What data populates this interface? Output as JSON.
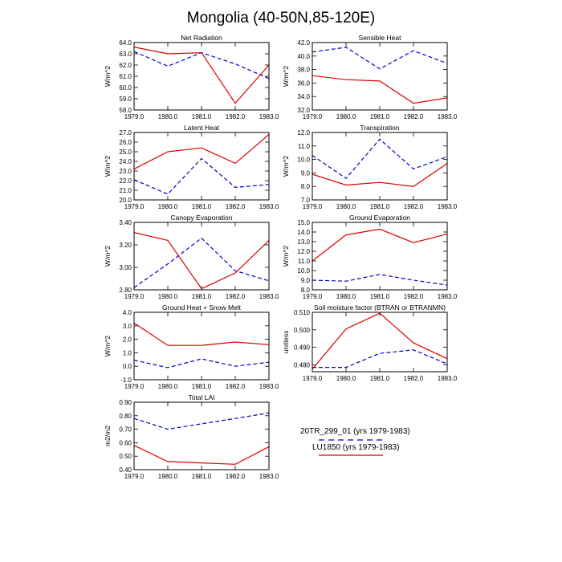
{
  "figure_title": "Mongolia (40-50N,85-120E)",
  "legend": {
    "entries": [
      {
        "label": "20TR_299_01 (yrs 1979-1983)",
        "color": "#0000cc",
        "dash": "dashed"
      },
      {
        "label": "LU1850 (yrs 1979-1983)",
        "color": "#dd0000",
        "dash": "solid"
      }
    ]
  },
  "chart_data": [
    {
      "type": "line",
      "title": "Net Radiation",
      "ylabel": "W/m^2",
      "x": [
        1979,
        1980,
        1981,
        1982,
        1983
      ],
      "xlim": [
        1979,
        1983
      ],
      "xticks": [
        "1979.0",
        "1980.0",
        "1981.0",
        "1982.0",
        "1983.0"
      ],
      "ylim": [
        58,
        64
      ],
      "yticks": [
        58,
        59,
        60,
        61,
        62,
        63,
        64
      ],
      "ydec": 1,
      "series": [
        {
          "name": "20TR_299_01",
          "color": "#0000cc",
          "dash": "dashed",
          "values": [
            63.2,
            61.9,
            63.1,
            62.1,
            60.8
          ]
        },
        {
          "name": "LU1850",
          "color": "#dd0000",
          "dash": "solid",
          "values": [
            63.6,
            63.0,
            63.1,
            58.6,
            62.0
          ]
        }
      ]
    },
    {
      "type": "line",
      "title": "Sensible Heat",
      "ylabel": "W/m^2",
      "x": [
        1979,
        1980,
        1981,
        1982,
        1983
      ],
      "xlim": [
        1979,
        1983
      ],
      "xticks": [
        "1979.0",
        "1980.0",
        "1981.0",
        "1982.0",
        "1983.0"
      ],
      "ylim": [
        32,
        42
      ],
      "yticks": [
        32,
        34,
        36,
        38,
        40,
        42
      ],
      "ydec": 1,
      "series": [
        {
          "name": "20TR_299_01",
          "color": "#0000cc",
          "dash": "dashed",
          "values": [
            40.6,
            41.3,
            38.1,
            40.8,
            38.9
          ]
        },
        {
          "name": "LU1850",
          "color": "#dd0000",
          "dash": "solid",
          "values": [
            37.1,
            36.5,
            36.3,
            33.0,
            33.8
          ]
        }
      ]
    },
    {
      "type": "line",
      "title": "Latent Heat",
      "ylabel": "W/m^2",
      "x": [
        1979,
        1980,
        1981,
        1982,
        1983
      ],
      "xlim": [
        1979,
        1983
      ],
      "xticks": [
        "1979.0",
        "1980.0",
        "1981.0",
        "1982.0",
        "1983.0"
      ],
      "ylim": [
        20,
        27
      ],
      "yticks": [
        20,
        21,
        22,
        23,
        24,
        25,
        26,
        27
      ],
      "ydec": 1,
      "series": [
        {
          "name": "20TR_299_01",
          "color": "#0000cc",
          "dash": "dashed",
          "values": [
            22.1,
            20.6,
            24.3,
            21.3,
            21.6
          ]
        },
        {
          "name": "LU1850",
          "color": "#dd0000",
          "dash": "solid",
          "values": [
            23.2,
            25.0,
            25.4,
            23.8,
            26.8
          ]
        }
      ]
    },
    {
      "type": "line",
      "title": "Transpiration",
      "ylabel": "W/m^2",
      "x": [
        1979,
        1980,
        1981,
        1982,
        1983
      ],
      "xlim": [
        1979,
        1983
      ],
      "xticks": [
        "1979.0",
        "1980.0",
        "1981.0",
        "1982.0",
        "1983.0"
      ],
      "ylim": [
        7,
        12
      ],
      "yticks": [
        7,
        8,
        9,
        10,
        11,
        12
      ],
      "ydec": 1,
      "series": [
        {
          "name": "20TR_299_01",
          "color": "#0000cc",
          "dash": "dashed",
          "values": [
            10.3,
            8.6,
            11.5,
            9.3,
            10.2
          ]
        },
        {
          "name": "LU1850",
          "color": "#dd0000",
          "dash": "solid",
          "values": [
            8.9,
            8.1,
            8.3,
            8.0,
            9.7
          ]
        }
      ]
    },
    {
      "type": "line",
      "title": "Canopy Evaporation",
      "ylabel": "W/m^2",
      "x": [
        1979,
        1980,
        1981,
        1982,
        1983
      ],
      "xlim": [
        1979,
        1983
      ],
      "xticks": [
        "1979.0",
        "1980.0",
        "1981.0",
        "1982.0",
        "1983.0"
      ],
      "ylim": [
        2.8,
        3.4
      ],
      "yticks": [
        2.8,
        3.0,
        3.2,
        3.4
      ],
      "ydec": 2,
      "series": [
        {
          "name": "20TR_299_01",
          "color": "#0000cc",
          "dash": "dashed",
          "values": [
            2.82,
            3.03,
            3.26,
            2.97,
            2.88
          ]
        },
        {
          "name": "LU1850",
          "color": "#dd0000",
          "dash": "solid",
          "values": [
            3.31,
            3.24,
            2.81,
            2.95,
            3.24
          ]
        }
      ]
    },
    {
      "type": "line",
      "title": "Ground Evaporation",
      "ylabel": "W/m^2",
      "x": [
        1979,
        1980,
        1981,
        1982,
        1983
      ],
      "xlim": [
        1979,
        1983
      ],
      "xticks": [
        "1979.0",
        "1980.0",
        "1981.0",
        "1982.0",
        "1983.0"
      ],
      "ylim": [
        8,
        15
      ],
      "yticks": [
        8,
        9,
        10,
        11,
        12,
        13,
        14,
        15
      ],
      "ydec": 1,
      "series": [
        {
          "name": "20TR_299_01",
          "color": "#0000cc",
          "dash": "dashed",
          "values": [
            9.0,
            8.9,
            9.6,
            9.0,
            8.5
          ]
        },
        {
          "name": "LU1850",
          "color": "#dd0000",
          "dash": "solid",
          "values": [
            11.0,
            13.7,
            14.3,
            12.9,
            13.8
          ]
        }
      ]
    },
    {
      "type": "line",
      "title": "Ground Heat + Snow Melt",
      "ylabel": "W/m^2",
      "x": [
        1979,
        1980,
        1981,
        1982,
        1983
      ],
      "xlim": [
        1979,
        1983
      ],
      "xticks": [
        "1979.0",
        "1980.0",
        "1981.0",
        "1982.0",
        "1983.0"
      ],
      "ylim": [
        -1,
        4
      ],
      "yticks": [
        -1,
        0,
        1,
        2,
        3,
        4
      ],
      "ydec": 1,
      "series": [
        {
          "name": "20TR_299_01",
          "color": "#0000cc",
          "dash": "dashed",
          "values": [
            0.45,
            -0.1,
            0.55,
            0.0,
            0.3
          ]
        },
        {
          "name": "LU1850",
          "color": "#dd0000",
          "dash": "solid",
          "values": [
            3.2,
            1.55,
            1.55,
            1.8,
            1.6
          ]
        }
      ]
    },
    {
      "type": "line",
      "title": "Soil moisture factor (BTRAN or BTRANMN)",
      "ylabel": "unitless",
      "x": [
        1979,
        1980,
        1981,
        1982,
        1983
      ],
      "xlim": [
        1979,
        1983
      ],
      "xticks": [
        "1979.0",
        "1980.0",
        "1981.0",
        "1982.0",
        "1983.0"
      ],
      "ylim": [
        0.476,
        0.51
      ],
      "yticks": [
        0.48,
        0.49,
        0.5,
        0.51
      ],
      "ydec": 3,
      "series": [
        {
          "name": "20TR_299_01",
          "color": "#0000cc",
          "dash": "dashed",
          "values": [
            0.4785,
            0.4785,
            0.4865,
            0.4885,
            0.4805
          ]
        },
        {
          "name": "LU1850",
          "color": "#dd0000",
          "dash": "solid",
          "values": [
            0.4775,
            0.5005,
            0.5095,
            0.4925,
            0.4835
          ]
        }
      ]
    },
    {
      "type": "line",
      "title": "Total LAI",
      "ylabel": "m2/m2",
      "x": [
        1979,
        1980,
        1981,
        1982,
        1983
      ],
      "xlim": [
        1979,
        1983
      ],
      "xticks": [
        "1979.0",
        "1980.0",
        "1981.0",
        "1982.0",
        "1983.0"
      ],
      "ylim": [
        0.4,
        0.9
      ],
      "yticks": [
        0.4,
        0.5,
        0.6,
        0.7,
        0.8,
        0.9
      ],
      "ydec": 2,
      "series": [
        {
          "name": "20TR_299_01",
          "color": "#0000cc",
          "dash": "dashed",
          "values": [
            0.78,
            0.7,
            0.74,
            0.78,
            0.82
          ]
        },
        {
          "name": "LU1850",
          "color": "#dd0000",
          "dash": "solid",
          "values": [
            0.58,
            0.46,
            0.45,
            0.44,
            0.57
          ]
        }
      ]
    }
  ]
}
